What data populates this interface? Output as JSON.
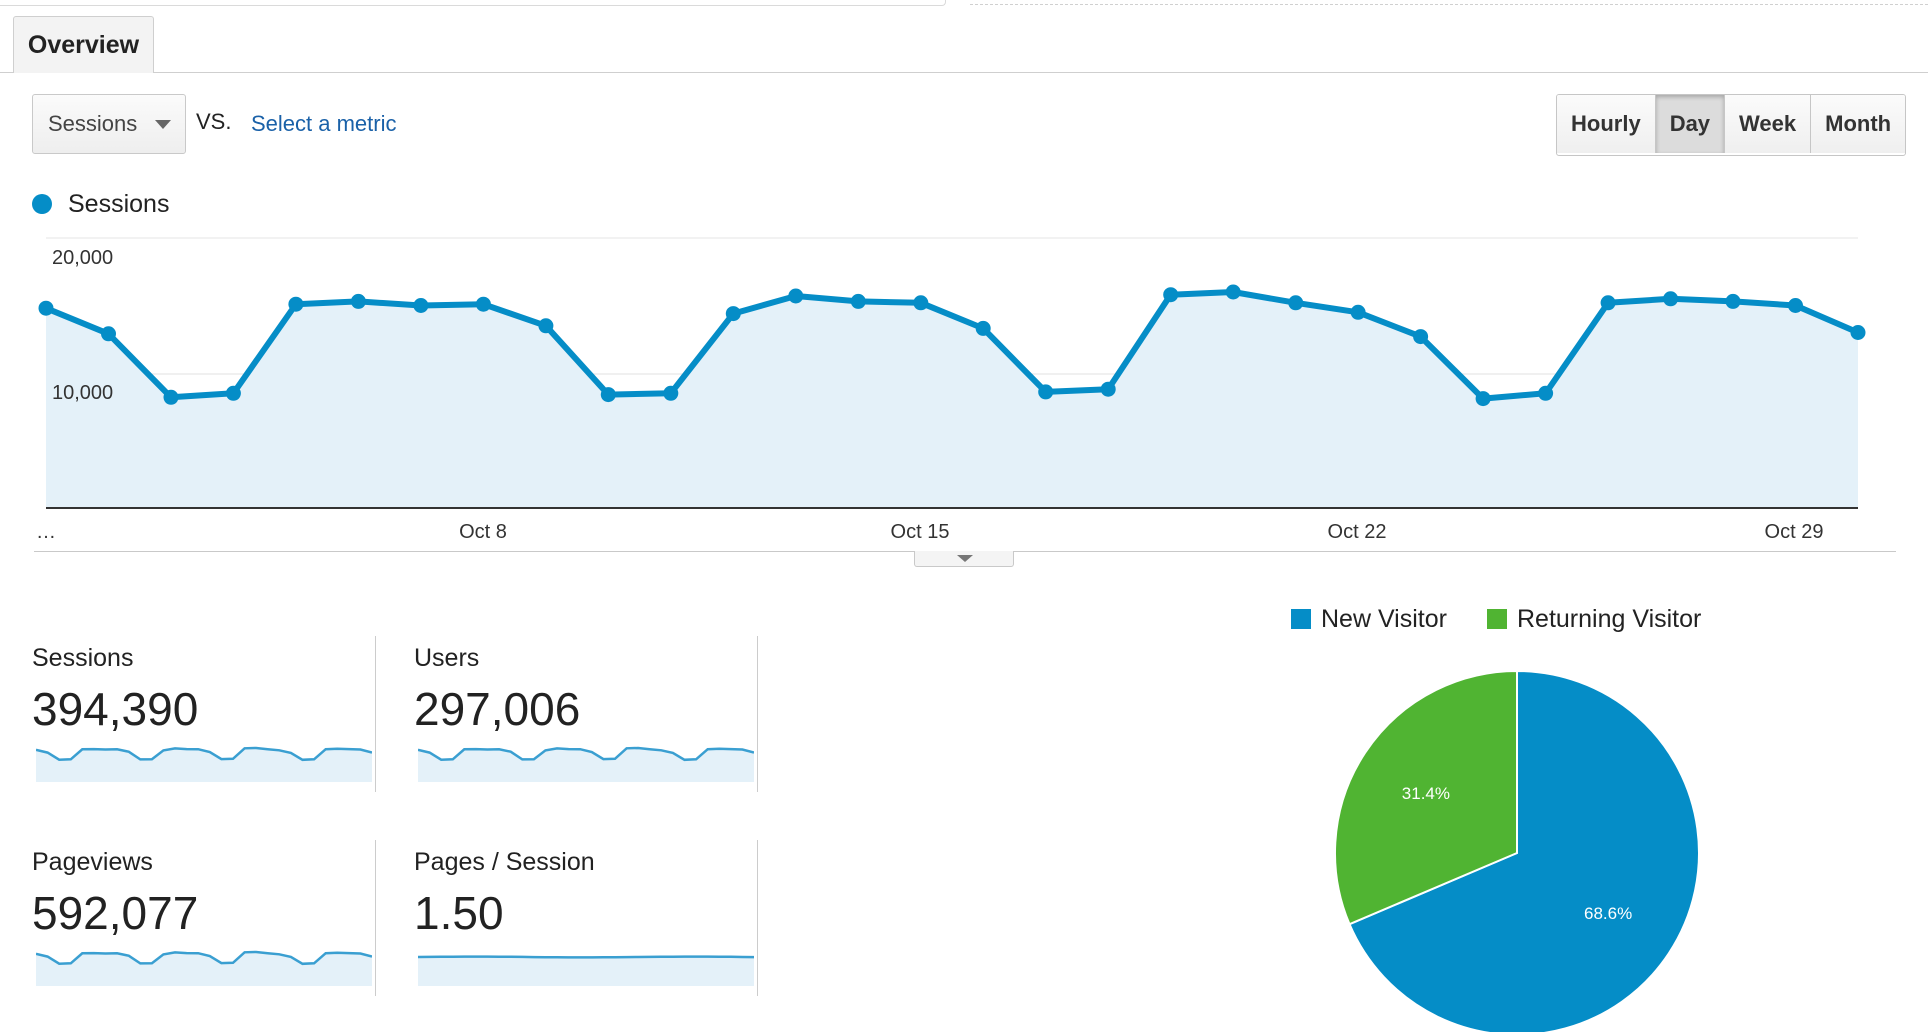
{
  "tabs": {
    "overview": "Overview"
  },
  "controls": {
    "metric": "Sessions",
    "vs": "VS.",
    "select_metric": "Select a metric",
    "periods": [
      "Hourly",
      "Day",
      "Week",
      "Month"
    ],
    "active_period": "Day"
  },
  "chart_legend": {
    "label": "Sessions",
    "color": "#058dc7"
  },
  "chart_data": [
    {
      "type": "area",
      "series": [
        {
          "name": "Sessions",
          "color": "#058dc7",
          "values": [
            14800,
            12900,
            8200,
            8500,
            15100,
            15300,
            15000,
            15100,
            13500,
            8400,
            8500,
            14400,
            15700,
            15300,
            15200,
            13300,
            8600,
            8800,
            15800,
            16000,
            15200,
            14500,
            12700,
            8100,
            8500,
            15200,
            15500,
            15300,
            15000,
            13000
          ]
        }
      ],
      "x_start_label": "…",
      "x_tick_labels": [
        "Oct 8",
        "Oct 15",
        "Oct 22",
        "Oct 29"
      ],
      "y_tick_labels": [
        "20,000",
        "10,000"
      ],
      "ylim": [
        0,
        20000
      ],
      "grid": true
    },
    {
      "type": "pie",
      "labels": [
        "New Visitor",
        "Returning Visitor"
      ],
      "values": [
        68.6,
        31.4
      ],
      "slice_labels": [
        "68.6%",
        "31.4%"
      ],
      "colors": [
        "#058dc7",
        "#50b432"
      ],
      "legend": "top"
    }
  ],
  "stats": [
    {
      "label": "Sessions",
      "value": "394,390"
    },
    {
      "label": "Users",
      "value": "297,006"
    },
    {
      "label": "Pageviews",
      "value": "592,077"
    },
    {
      "label": "Pages / Session",
      "value": "1.50"
    }
  ],
  "pie_legend": [
    {
      "label": "New Visitor",
      "color": "#058dc7"
    },
    {
      "label": "Returning Visitor",
      "color": "#50b432"
    }
  ],
  "icons": [
    "dropdown-caret-icon",
    "expand-chart-icon"
  ]
}
